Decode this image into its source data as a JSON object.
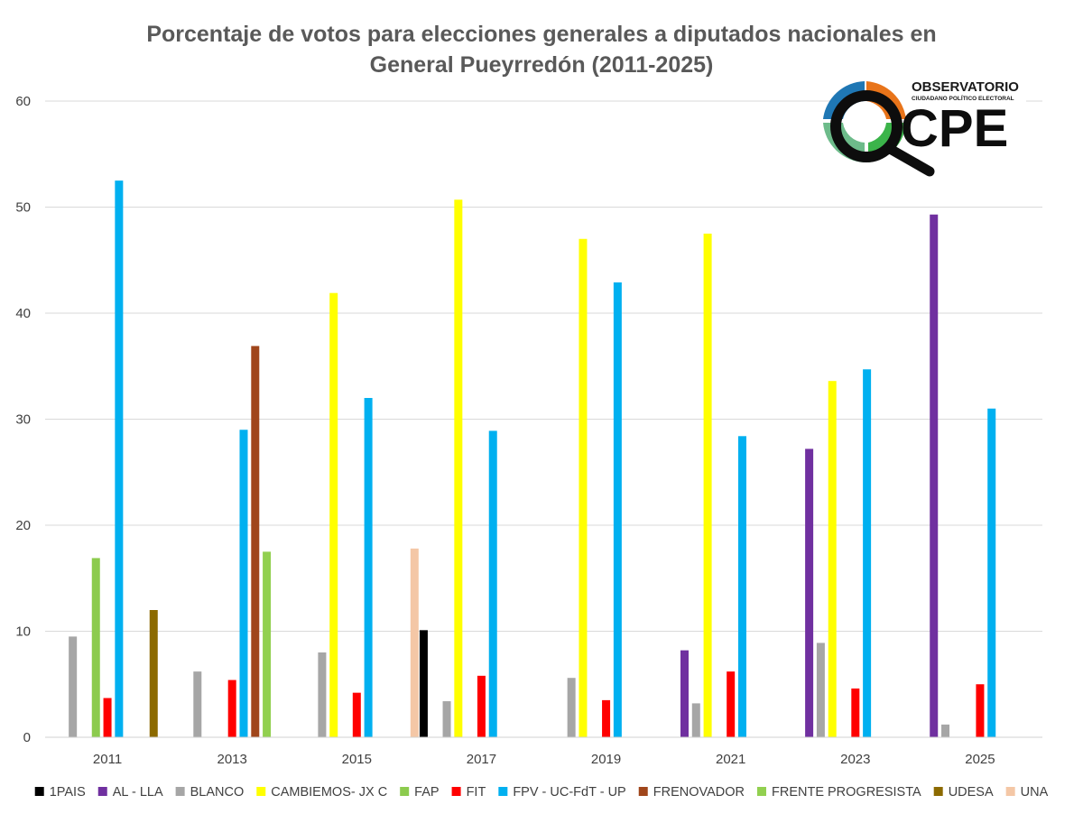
{
  "chart_data": {
    "type": "bar",
    "title_lines": [
      "Porcentaje de votos para elecciones generales a diputados nacionales en",
      "General Pueyrredón (2011-2025)"
    ],
    "categories": [
      "2011",
      "2013",
      "2015",
      "2017",
      "2019",
      "2021",
      "2023",
      "2025"
    ],
    "ylim": [
      0,
      60
    ],
    "yticks": [
      0,
      10,
      20,
      30,
      40,
      50,
      60
    ],
    "grid": true,
    "legend_position": "bottom",
    "series": [
      {
        "name": "1PAIS",
        "color": "#000000",
        "values": [
          null,
          null,
          null,
          10.1,
          null,
          null,
          null,
          null
        ]
      },
      {
        "name": "AL - LLA",
        "color": "#7030A0",
        "values": [
          null,
          null,
          null,
          null,
          null,
          8.2,
          27.2,
          49.3
        ]
      },
      {
        "name": "BLANCO",
        "color": "#A6A6A6",
        "values": [
          9.5,
          6.2,
          8.0,
          3.4,
          5.6,
          3.2,
          8.9,
          1.2
        ]
      },
      {
        "name": "CAMBIEMOS- JX C",
        "color": "#FFFF00",
        "values": [
          null,
          null,
          41.9,
          50.7,
          47.0,
          47.5,
          33.6,
          null
        ]
      },
      {
        "name": "FAP",
        "color": "#8CCB4E",
        "values": [
          16.9,
          null,
          null,
          null,
          null,
          null,
          null,
          null
        ]
      },
      {
        "name": "FIT",
        "color": "#FF0000",
        "values": [
          3.7,
          5.4,
          4.2,
          5.8,
          3.5,
          6.2,
          4.6,
          5.0
        ]
      },
      {
        "name": "FPV - UC-FdT - UP",
        "color": "#00B0F0",
        "values": [
          52.5,
          29.0,
          32.0,
          28.9,
          42.9,
          28.4,
          34.7,
          31.0
        ]
      },
      {
        "name": "FRENOVADOR",
        "color": "#A0461B",
        "values": [
          null,
          36.9,
          null,
          null,
          null,
          null,
          null,
          null
        ]
      },
      {
        "name": "FRENTE PROGRESISTA",
        "color": "#92D050",
        "values": [
          null,
          17.5,
          null,
          null,
          null,
          null,
          null,
          null
        ]
      },
      {
        "name": "UDESA",
        "color": "#8C6A00",
        "values": [
          12.0,
          null,
          null,
          null,
          null,
          null,
          null,
          null
        ]
      },
      {
        "name": "UNA",
        "color": "#F4C7A6",
        "values": [
          null,
          null,
          17.8,
          null,
          null,
          null,
          null,
          null
        ]
      }
    ]
  },
  "logo": {
    "line1": "OBSERVATORIO",
    "line2": "CIUDADANO POLÍTICO ELECTORAL",
    "letters": "CPE"
  }
}
